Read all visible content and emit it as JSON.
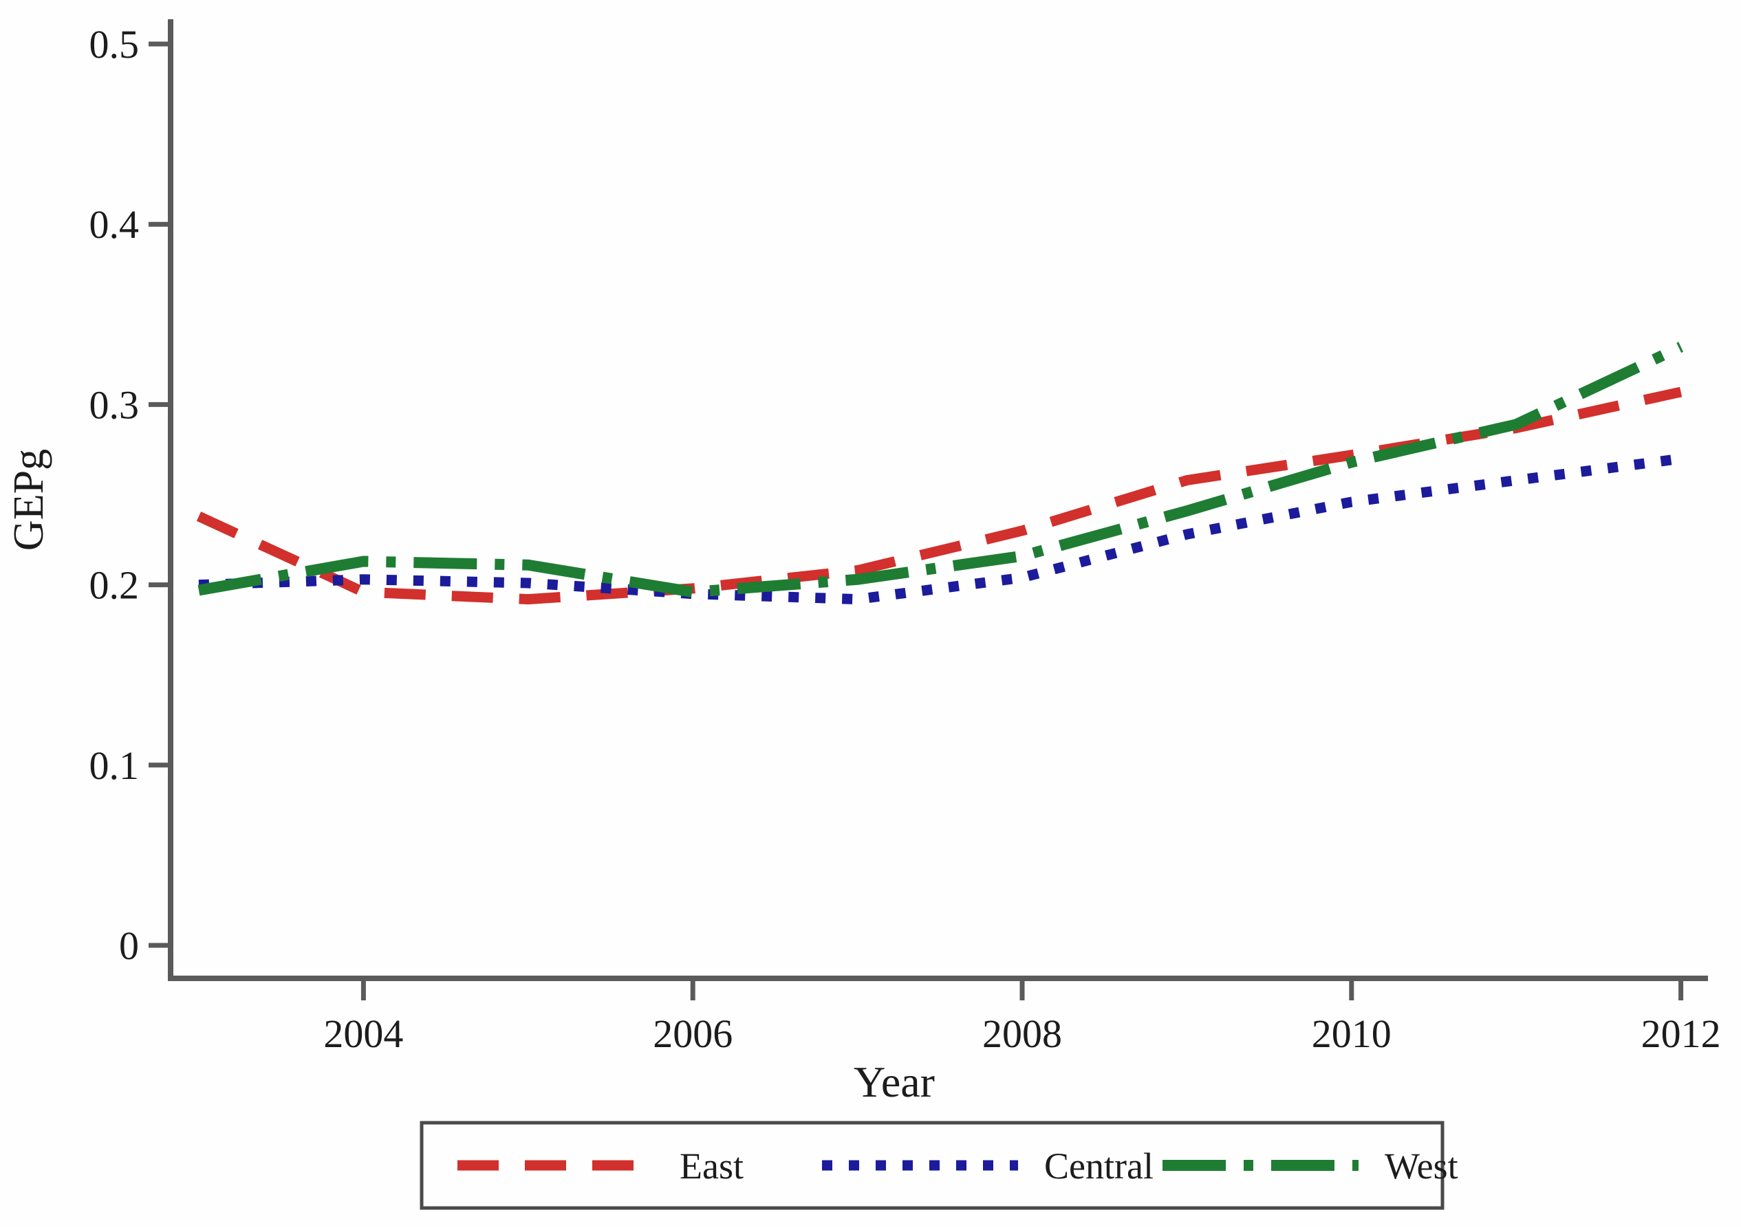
{
  "figure": {
    "background": "#fefefe",
    "axis_color": "#5a5a5a",
    "text_color": "#1c1c1c",
    "legend_border_color": "#4a4a4a",
    "legend_fill": "#fefefe"
  },
  "chart_data": {
    "type": "line",
    "title": "",
    "xlabel": "Year",
    "ylabel": "GEPg",
    "x": [
      2003,
      2004,
      2005,
      2006,
      2007,
      2008,
      2009,
      2010,
      2011,
      2012
    ],
    "x_ticks": [
      2004,
      2006,
      2008,
      2010,
      2012
    ],
    "y_ticks": [
      0,
      0.1,
      0.2,
      0.3,
      0.4,
      0.5
    ],
    "xlim": [
      2003,
      2012
    ],
    "ylim": [
      0,
      0.5
    ],
    "grid": false,
    "legend_position": "bottom",
    "series": [
      {
        "name": "East",
        "style": "dashed",
        "color": "#d2302c",
        "values": [
          0.238,
          0.196,
          0.192,
          0.198,
          0.208,
          0.23,
          0.258,
          0.272,
          0.287,
          0.307
        ]
      },
      {
        "name": "Central",
        "style": "dotted",
        "color": "#1b1b9c",
        "values": [
          0.2,
          0.203,
          0.201,
          0.195,
          0.192,
          0.204,
          0.228,
          0.246,
          0.258,
          0.27
        ]
      },
      {
        "name": "West",
        "style": "dash-dot",
        "color": "#1e7d33",
        "values": [
          0.197,
          0.213,
          0.211,
          0.196,
          0.203,
          0.216,
          0.241,
          0.268,
          0.289,
          0.332
        ]
      }
    ]
  }
}
